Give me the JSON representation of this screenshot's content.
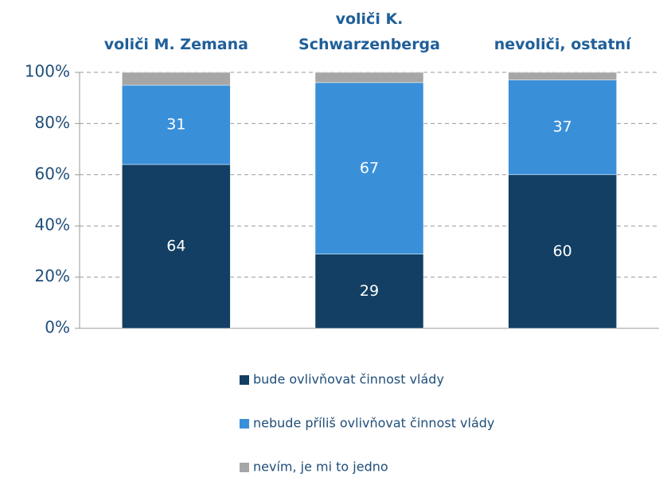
{
  "chart_data": {
    "type": "stacked_bar",
    "categories": [
      "voliči M. Zemana",
      "voliči K. Schwarzenberga",
      "nevoliči, ostatní"
    ],
    "series": [
      {
        "name": "bude ovlivňovat činnost vlády",
        "color": "#123f63",
        "values": [
          64,
          29,
          60
        ]
      },
      {
        "name": "nebude příliš ovlivňovat činnost vlády",
        "color": "#3a8fd9",
        "values": [
          31,
          67,
          37
        ]
      },
      {
        "name": "nevím, je mi to jedno",
        "color": "#a6a6a6",
        "values": [
          5,
          4,
          3
        ]
      }
    ],
    "ylim": [
      0,
      100
    ],
    "yticks": [
      {
        "value": 0,
        "label": "0%"
      },
      {
        "value": 20,
        "label": "20%"
      },
      {
        "value": 40,
        "label": "40%"
      },
      {
        "value": 60,
        "label": "60%"
      },
      {
        "value": 80,
        "label": "80%"
      },
      {
        "value": 100,
        "label": "100%"
      }
    ],
    "grid": true,
    "legend": "bottom"
  }
}
